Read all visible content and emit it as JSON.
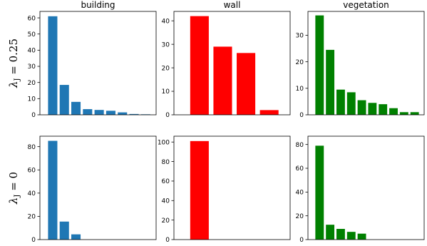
{
  "chart_data": [
    {
      "type": "bar",
      "title": "building",
      "row_label": "λ_J = 0.25",
      "color": "#1f77b4",
      "values": [
        61,
        18.5,
        8,
        3.5,
        3,
        2.5,
        1.5,
        0.5,
        0.3
      ],
      "ylim": [
        0,
        64
      ],
      "yticks": [
        0,
        10,
        20,
        30,
        40,
        50,
        60
      ]
    },
    {
      "type": "bar",
      "title": "wall",
      "color": "#ff0000",
      "values": [
        42,
        29,
        26.3,
        2
      ],
      "ylim": [
        0,
        44
      ],
      "yticks": [
        0,
        10,
        20,
        30,
        40
      ]
    },
    {
      "type": "bar",
      "title": "vegetation",
      "color": "#008000",
      "values": [
        37.5,
        24.5,
        9.5,
        8.5,
        5.5,
        4.5,
        4,
        2.5,
        1,
        1
      ],
      "ylim": [
        0,
        39
      ],
      "yticks": [
        0,
        10,
        20,
        30
      ]
    },
    {
      "type": "bar",
      "title": "",
      "row_label": "λ_J = 0",
      "color": "#1f77b4",
      "values": [
        85,
        15.5,
        4.5
      ],
      "ylim": [
        0,
        89
      ],
      "yticks": [
        0,
        20,
        40,
        60,
        80
      ]
    },
    {
      "type": "bar",
      "title": "",
      "color": "#ff0000",
      "values": [
        101
      ],
      "ylim": [
        0,
        106
      ],
      "yticks": [
        0,
        20,
        40,
        60,
        80,
        100
      ]
    },
    {
      "type": "bar",
      "title": "",
      "color": "#008000",
      "values": [
        79,
        12.5,
        9,
        6.5,
        5
      ],
      "ylim": [
        0,
        87
      ],
      "yticks": [
        0,
        20,
        40,
        60,
        80
      ]
    }
  ]
}
